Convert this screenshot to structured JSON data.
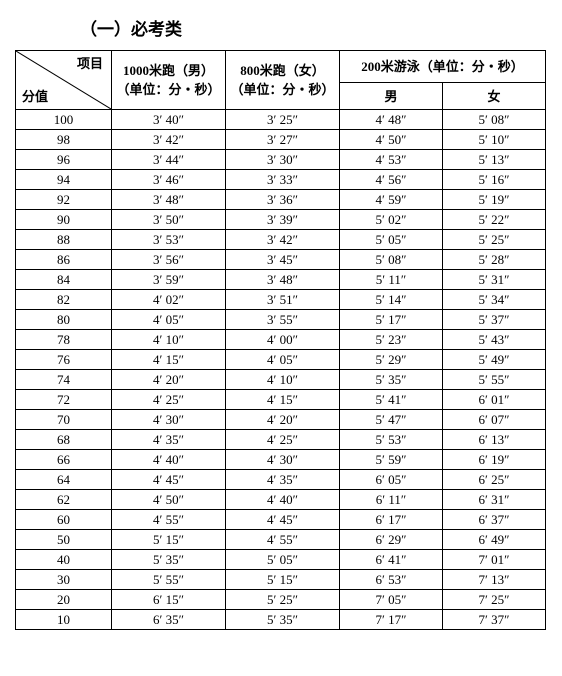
{
  "title": "（一）必考类",
  "header": {
    "diag_top": "项目",
    "diag_bottom": "分值",
    "col1_line1": "1000米跑（男）",
    "col1_line2": "（单位：分・秒）",
    "col2_line1": "800米跑（女）",
    "col2_line2": "（单位：分・秒）",
    "col34_top": "200米游泳（单位：分・秒）",
    "col3_sub": "男",
    "col4_sub": "女"
  },
  "rows": [
    {
      "score": "100",
      "c1": "3′ 40″",
      "c2": "3′ 25″",
      "c3": "4′ 48″",
      "c4": "5′ 08″"
    },
    {
      "score": "98",
      "c1": "3′ 42″",
      "c2": "3′ 27″",
      "c3": "4′ 50″",
      "c4": "5′ 10″"
    },
    {
      "score": "96",
      "c1": "3′ 44″",
      "c2": "3′ 30″",
      "c3": "4′ 53″",
      "c4": "5′ 13″"
    },
    {
      "score": "94",
      "c1": "3′ 46″",
      "c2": "3′ 33″",
      "c3": "4′ 56″",
      "c4": "5′ 16″"
    },
    {
      "score": "92",
      "c1": "3′ 48″",
      "c2": "3′ 36″",
      "c3": "4′ 59″",
      "c4": "5′ 19″"
    },
    {
      "score": "90",
      "c1": "3′ 50″",
      "c2": "3′ 39″",
      "c3": "5′ 02″",
      "c4": "5′ 22″"
    },
    {
      "score": "88",
      "c1": "3′ 53″",
      "c2": "3′ 42″",
      "c3": "5′ 05″",
      "c4": "5′ 25″"
    },
    {
      "score": "86",
      "c1": "3′ 56″",
      "c2": "3′ 45″",
      "c3": "5′ 08″",
      "c4": "5′ 28″"
    },
    {
      "score": "84",
      "c1": "3′ 59″",
      "c2": "3′ 48″",
      "c3": "5′ 11″",
      "c4": "5′ 31″"
    },
    {
      "score": "82",
      "c1": "4′ 02″",
      "c2": "3′ 51″",
      "c3": "5′ 14″",
      "c4": "5′ 34″"
    },
    {
      "score": "80",
      "c1": "4′ 05″",
      "c2": "3′ 55″",
      "c3": "5′ 17″",
      "c4": "5′ 37″"
    },
    {
      "score": "78",
      "c1": "4′ 10″",
      "c2": "4′ 00″",
      "c3": "5′ 23″",
      "c4": "5′ 43″"
    },
    {
      "score": "76",
      "c1": "4′ 15″",
      "c2": "4′ 05″",
      "c3": "5′ 29″",
      "c4": "5′ 49″"
    },
    {
      "score": "74",
      "c1": "4′ 20″",
      "c2": "4′ 10″",
      "c3": "5′ 35″",
      "c4": "5′ 55″"
    },
    {
      "score": "72",
      "c1": "4′ 25″",
      "c2": "4′ 15″",
      "c3": "5′ 41″",
      "c4": "6′ 01″"
    },
    {
      "score": "70",
      "c1": "4′ 30″",
      "c2": "4′ 20″",
      "c3": "5′ 47″",
      "c4": "6′ 07″"
    },
    {
      "score": "68",
      "c1": "4′ 35″",
      "c2": "4′ 25″",
      "c3": "5′ 53″",
      "c4": "6′ 13″"
    },
    {
      "score": "66",
      "c1": "4′ 40″",
      "c2": "4′ 30″",
      "c3": "5′ 59″",
      "c4": "6′ 19″"
    },
    {
      "score": "64",
      "c1": "4′ 45″",
      "c2": "4′ 35″",
      "c3": "6′ 05″",
      "c4": "6′ 25″"
    },
    {
      "score": "62",
      "c1": "4′ 50″",
      "c2": "4′ 40″",
      "c3": "6′ 11″",
      "c4": "6′ 31″"
    },
    {
      "score": "60",
      "c1": "4′ 55″",
      "c2": "4′ 45″",
      "c3": "6′ 17″",
      "c4": "6′ 37″"
    },
    {
      "score": "50",
      "c1": "5′ 15″",
      "c2": "4′ 55″",
      "c3": "6′ 29″",
      "c4": "6′ 49″"
    },
    {
      "score": "40",
      "c1": "5′ 35″",
      "c2": "5′ 05″",
      "c3": "6′ 41″",
      "c4": "7′ 01″"
    },
    {
      "score": "30",
      "c1": "5′ 55″",
      "c2": "5′ 15″",
      "c3": "6′ 53″",
      "c4": "7′ 13″"
    },
    {
      "score": "20",
      "c1": "6′ 15″",
      "c2": "5′ 25″",
      "c3": "7′ 05″",
      "c4": "7′ 25″"
    },
    {
      "score": "10",
      "c1": "6′ 35″",
      "c2": "5′ 35″",
      "c3": "7′ 17″",
      "c4": "7′ 37″"
    }
  ]
}
